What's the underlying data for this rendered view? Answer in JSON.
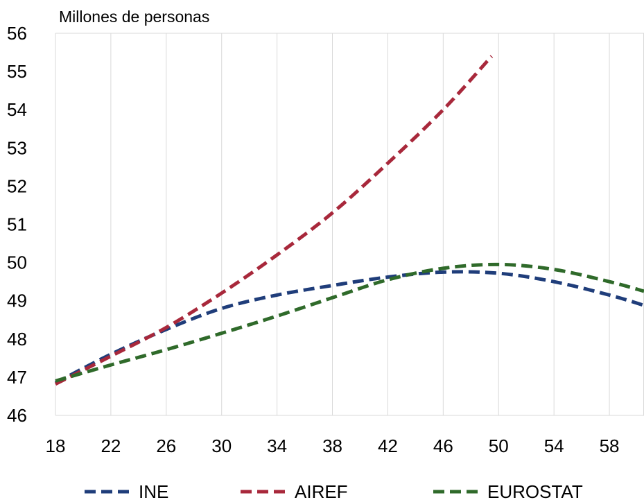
{
  "chart_data": {
    "type": "line",
    "title": "",
    "xlabel": "",
    "ylabel": "Millones de personas",
    "xlim": [
      18,
      60.5
    ],
    "ylim": [
      46,
      56
    ],
    "x_ticks": [
      18,
      22,
      26,
      30,
      34,
      38,
      42,
      46,
      50,
      54,
      58
    ],
    "y_ticks": [
      46,
      47,
      48,
      49,
      50,
      51,
      52,
      53,
      54,
      55,
      56
    ],
    "grid": "vertical",
    "legend_position": "bottom",
    "series": [
      {
        "name": "INE",
        "color": "#1f3d7a",
        "points": [
          [
            18,
            46.85
          ],
          [
            22,
            47.6
          ],
          [
            26,
            48.25
          ],
          [
            30,
            48.8
          ],
          [
            34,
            49.15
          ],
          [
            38,
            49.4
          ],
          [
            42,
            49.62
          ],
          [
            46,
            49.75
          ],
          [
            50,
            49.72
          ],
          [
            54,
            49.5
          ],
          [
            58,
            49.15
          ],
          [
            60.5,
            48.88
          ]
        ]
      },
      {
        "name": "AIREF",
        "color": "#a8283b",
        "points": [
          [
            18,
            46.82
          ],
          [
            22,
            47.55
          ],
          [
            26,
            48.3
          ],
          [
            30,
            49.2
          ],
          [
            34,
            50.2
          ],
          [
            38,
            51.3
          ],
          [
            42,
            52.6
          ],
          [
            46,
            54.0
          ],
          [
            49.5,
            55.4
          ]
        ]
      },
      {
        "name": "EUROSTAT",
        "color": "#2f6a2a",
        "points": [
          [
            18,
            46.9
          ],
          [
            22,
            47.32
          ],
          [
            26,
            47.72
          ],
          [
            30,
            48.15
          ],
          [
            34,
            48.6
          ],
          [
            38,
            49.08
          ],
          [
            42,
            49.55
          ],
          [
            46,
            49.85
          ],
          [
            50,
            49.95
          ],
          [
            54,
            49.82
          ],
          [
            58,
            49.5
          ],
          [
            60.5,
            49.25
          ]
        ]
      }
    ]
  }
}
